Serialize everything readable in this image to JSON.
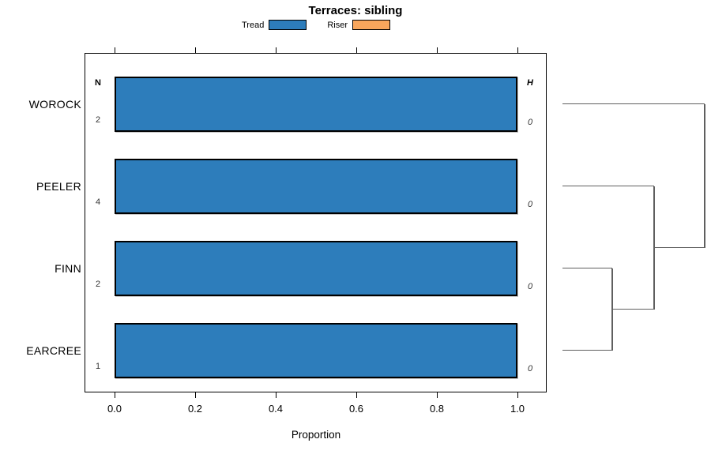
{
  "title": "Terraces: sibling",
  "legend": {
    "items": [
      {
        "label": "Tread",
        "color": "#2D7DBB"
      },
      {
        "label": "Riser",
        "color": "#F8A65C"
      }
    ]
  },
  "chart_data": {
    "type": "bar",
    "orientation": "horizontal",
    "title": "Terraces: sibling",
    "xlabel": "Proportion",
    "xlim": [
      0,
      1
    ],
    "xticks": [
      "0.0",
      "0.2",
      "0.4",
      "0.6",
      "0.8",
      "1.0"
    ],
    "grid": false,
    "legend_position": "top",
    "categories": [
      "WOROCK",
      "PEELER",
      "FINN",
      "EARCREE"
    ],
    "series": [
      {
        "name": "Tread",
        "color": "#2D7DBB",
        "values": [
          1.0,
          1.0,
          1.0,
          1.0
        ]
      },
      {
        "name": "Riser",
        "color": "#F8A65C",
        "values": [
          0.0,
          0.0,
          0.0,
          0.0
        ]
      }
    ],
    "left_annotation": {
      "header": "N",
      "values": [
        "2",
        "4",
        "2",
        "1"
      ]
    },
    "right_annotation": {
      "header": "H",
      "values": [
        "0",
        "0",
        "0",
        "0"
      ]
    },
    "dendrogram": {
      "leaf_order": [
        "WOROCK",
        "PEELER",
        "FINN",
        "EARCREE"
      ],
      "joins": [
        {
          "a": "FINN",
          "b": "EARCREE",
          "height_frac": 0.35
        },
        {
          "a": "join0",
          "b": "PEELER",
          "height_frac": 0.645
        },
        {
          "a": "join1",
          "b": "WOROCK",
          "height_frac": 1.0
        }
      ]
    }
  }
}
